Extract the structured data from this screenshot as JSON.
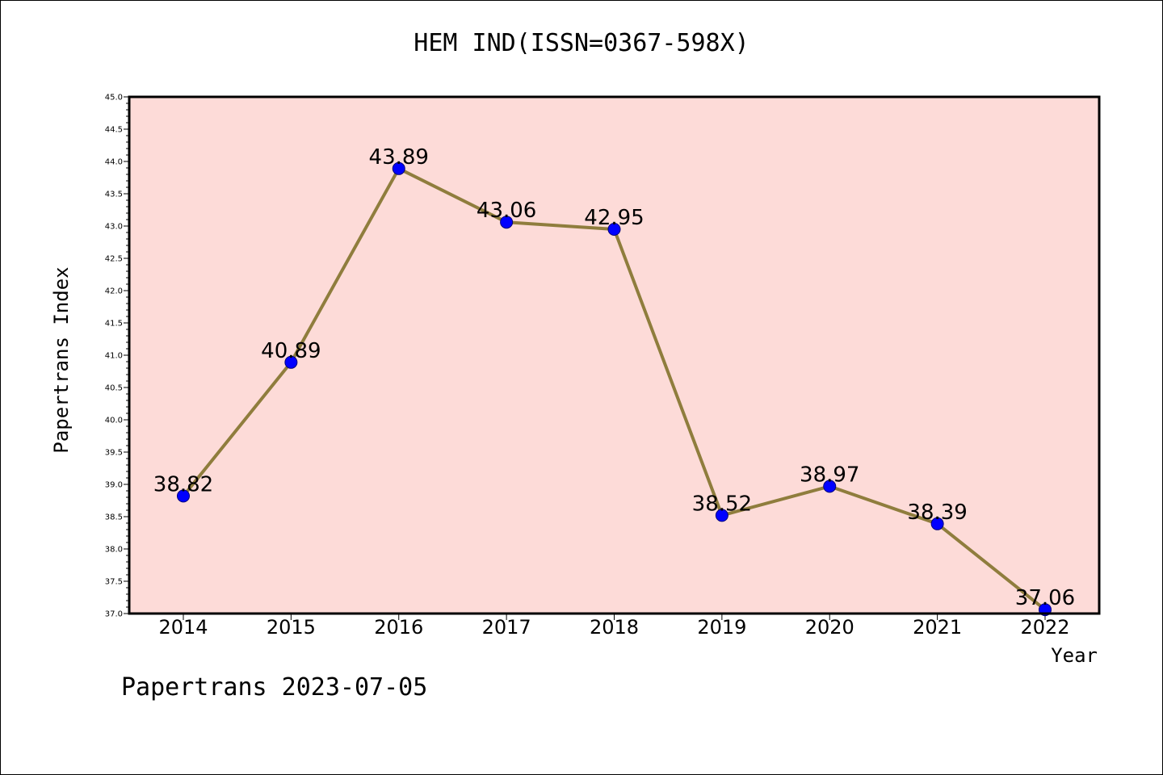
{
  "page": {
    "title": "HEM IND(ISSN=0367-598X)",
    "footer": "Papertrans 2023-07-05"
  },
  "colors": {
    "plot_background": "#fddbd8",
    "line": "#8f7d3d",
    "marker": "#0000ff",
    "marker_edge": "#00007a",
    "axis": "#000000"
  },
  "chart_data": {
    "type": "line",
    "title": "HEM IND(ISSN=0367-598X)",
    "xlabel": "Year",
    "ylabel": "Papertrans Index",
    "categories": [
      "2014",
      "2015",
      "2016",
      "2017",
      "2018",
      "2019",
      "2020",
      "2021",
      "2022"
    ],
    "series": [
      {
        "values": [
          38.82,
          40.89,
          43.89,
          43.06,
          42.95,
          38.52,
          38.97,
          38.39,
          37.06
        ],
        "labels": [
          "38.82",
          "40.89",
          "43.89",
          "43.06",
          "42.95",
          "38.52",
          "38.97",
          "38.39",
          "37.06"
        ]
      }
    ],
    "ylim": [
      37.0,
      45.0
    ],
    "yticks": [
      "37.0",
      "37.5",
      "38.0",
      "38.5",
      "39.0",
      "39.5",
      "40.0",
      "40.5",
      "41.0",
      "41.5",
      "42.0",
      "42.5",
      "43.0",
      "43.5",
      "44.0",
      "44.5",
      "45.0"
    ],
    "grid": false,
    "legend": "none"
  }
}
